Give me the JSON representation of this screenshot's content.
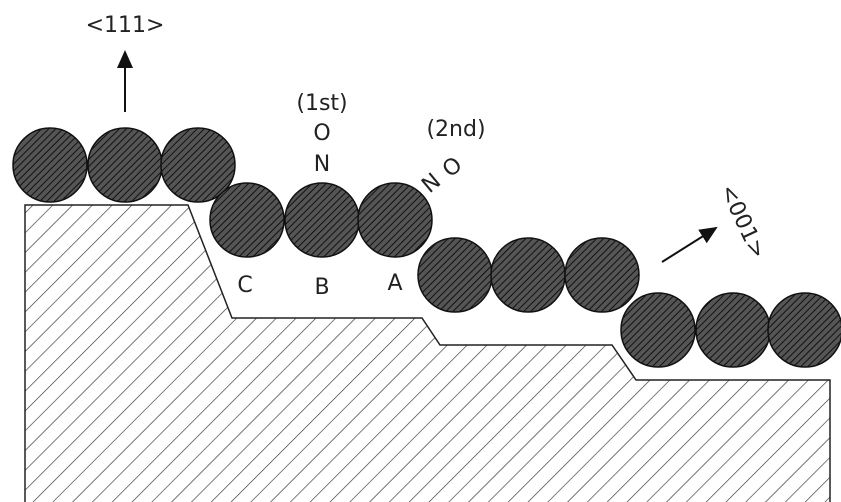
{
  "direction_top": "<111>",
  "first_label": "(1st)",
  "first_o": "O",
  "first_n": "N",
  "second_label": "(2nd)",
  "second_n": "N",
  "second_o": "O",
  "site_c": "C",
  "site_b": "B",
  "site_a": "A",
  "direction_right": "<001>"
}
